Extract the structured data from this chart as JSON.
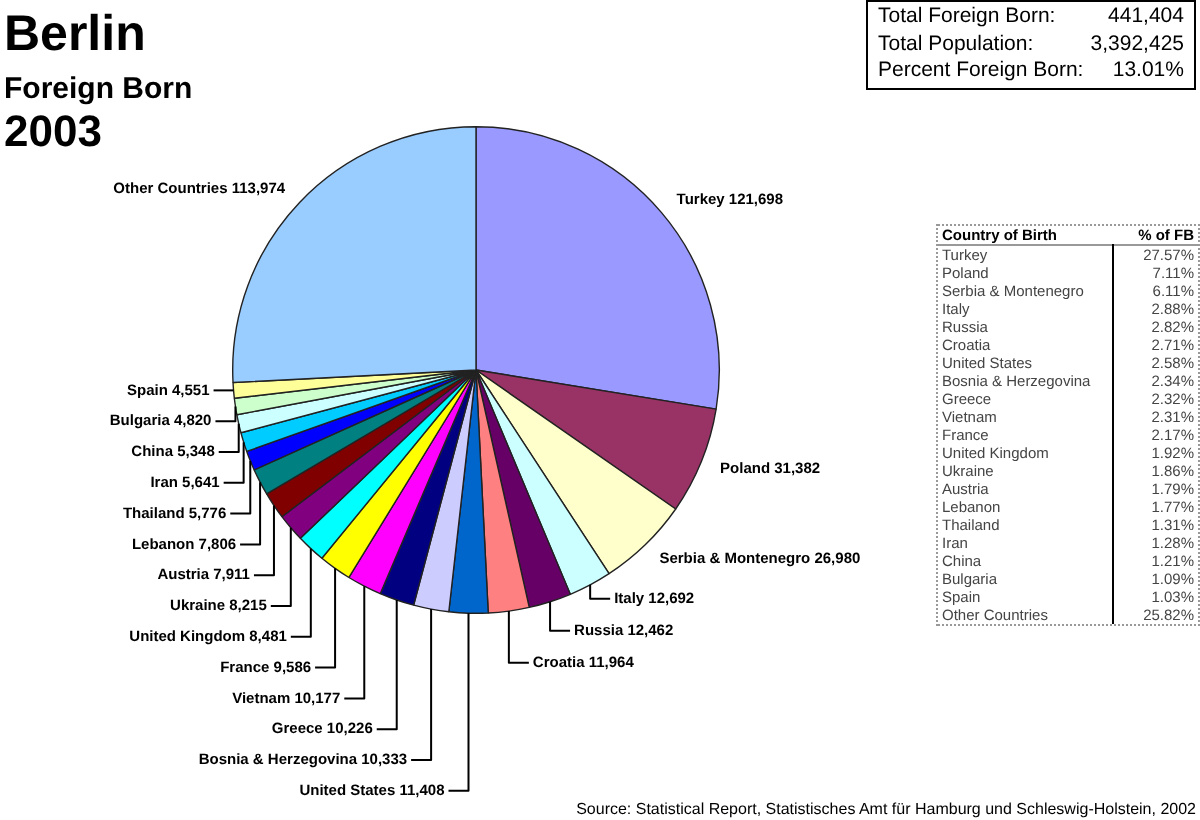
{
  "chart_data": [
    {
      "type": "pie",
      "title": "Berlin",
      "subtitle": "Foreign Born\n2003",
      "categories": [
        "Turkey",
        "Poland",
        "Serbia & Montenegro",
        "Italy",
        "Russia",
        "Croatia",
        "United States",
        "Bosnia & Herzegovina",
        "Greece",
        "Vietnam",
        "France",
        "United Kingdom",
        "Ukraine",
        "Austria",
        "Lebanon",
        "Thailand",
        "Iran",
        "China",
        "Bulgaria",
        "Spain",
        "Other Countries"
      ],
      "values": [
        121698,
        31382,
        26980,
        12692,
        12462,
        11964,
        11408,
        10333,
        10226,
        10177,
        9586,
        8481,
        8215,
        7911,
        7806,
        5776,
        5641,
        5348,
        4820,
        4551,
        113974
      ],
      "value_labels": [
        "121,698",
        "31,382",
        "26,980",
        "12,692",
        "12,462",
        "11,964",
        "11,408",
        "10,333",
        "10,226",
        "10,177",
        "9,586",
        "8,481",
        "8,215",
        "7,911",
        "7,806",
        "5,776",
        "5,641",
        "5,348",
        "4,820",
        "4,551",
        "113,974"
      ],
      "colors": [
        "#9999ff",
        "#993366",
        "#ffffcc",
        "#ccffff",
        "#660066",
        "#ff8080",
        "#0066cc",
        "#ccccff",
        "#000080",
        "#ff00ff",
        "#ffff00",
        "#00ffff",
        "#800080",
        "#800000",
        "#008080",
        "#0000ff",
        "#00ccff",
        "#ccffff",
        "#ccffcc",
        "#ffff99",
        "#99ccff"
      ],
      "annotations": [
        "Source: Statistical Report, Statistisches Amt für Hamburg und Schleswig-Holstein, 2002"
      ]
    },
    {
      "type": "other",
      "annotations": [
        "Total Foreign Born: 441,404",
        "Total Population: 3,392,425",
        "Percent Foreign Born: 13.01%"
      ]
    },
    {
      "type": "other",
      "xlabel": "Country of Birth",
      "ylabel": "% of FB",
      "categories": [
        "Turkey",
        "Poland",
        "Serbia & Montenegro",
        "Italy",
        "Russia",
        "Croatia",
        "United States",
        "Bosnia & Herzegovina",
        "Greece",
        "Vietnam",
        "France",
        "United Kingdom",
        "Ukraine",
        "Austria",
        "Lebanon",
        "Thailand",
        "Iran",
        "China",
        "Bulgaria",
        "Spain",
        "Other Countries"
      ],
      "value_labels": [
        "27.57%",
        "7.11%",
        "6.11%",
        "2.88%",
        "2.82%",
        "2.71%",
        "2.58%",
        "2.34%",
        "2.32%",
        "2.31%",
        "2.17%",
        "1.92%",
        "1.86%",
        "1.79%",
        "1.77%",
        "1.31%",
        "1.28%",
        "1.21%",
        "1.09%",
        "1.03%",
        "25.82%"
      ]
    }
  ]
}
